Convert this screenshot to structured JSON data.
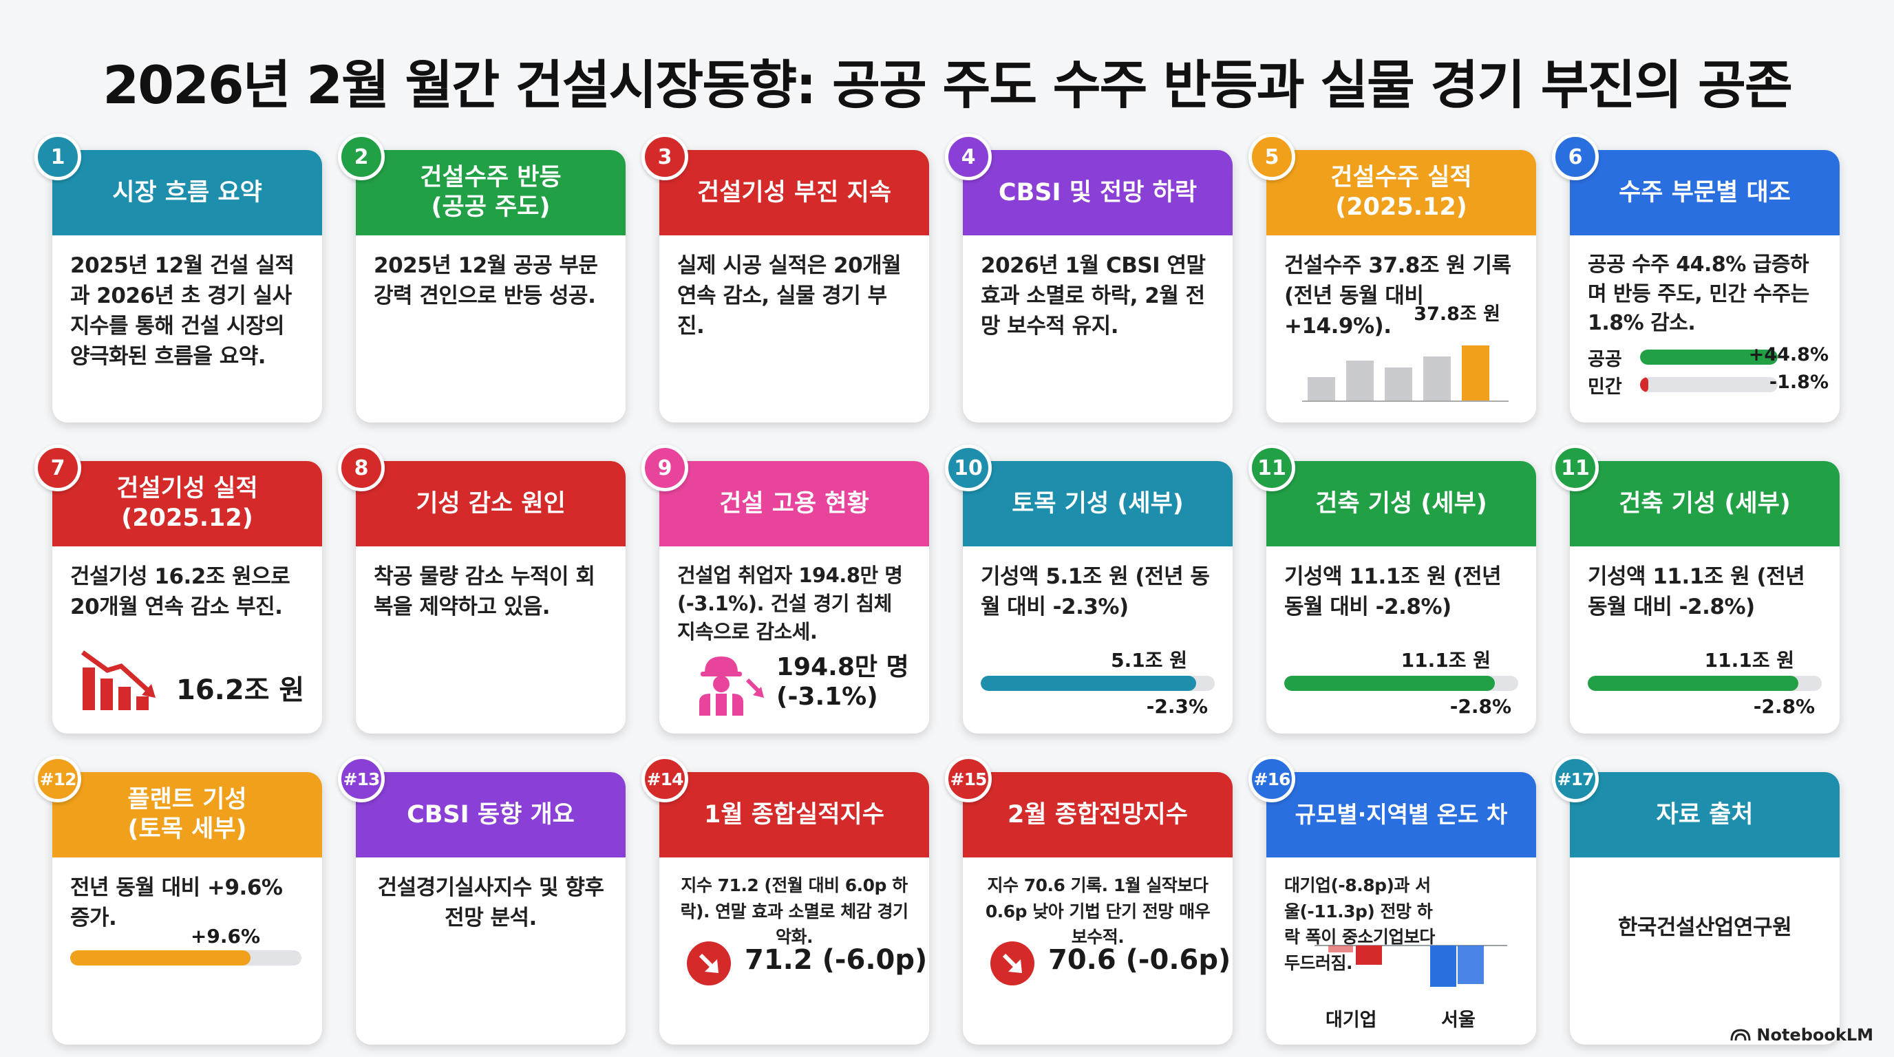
{
  "title": "2026년 2월 월간 건설시장동향: 공공 주도 수주 반등과 실물 경기 부진의 공존",
  "cards": [
    {
      "num": "1",
      "color": "#1d8fac",
      "title": "시장 흐름 요약",
      "body": "2025년 12월 건설 실적과 2026년 초 경기 실사 지수를 통해 건설 시장의 양극화된 흐름을 요약."
    },
    {
      "num": "2",
      "color": "#22a046",
      "title": "건설수주 반등\n(공공 주도)",
      "body": "2025년 12월 공공 부문 강력 견인으로 반등 성공."
    },
    {
      "num": "3",
      "color": "#d52a2a",
      "title": "건설기성 부진 지속",
      "body": "실제 시공 실적은 20개월 연속 감소, 실물 경기 부진."
    },
    {
      "num": "4",
      "color": "#8a3fd6",
      "title": "CBSI 및 전망 하락",
      "body": "2026년 1월 CBSI 연말 효과 소멸로 하락, 2월 전망 보수적 유지."
    },
    {
      "num": "5",
      "color": "#f0a01a",
      "title": "건설수주 실적\n(2025.12)",
      "body": "건설수주 37.8조 원 기록 (전년 동월 대비 +14.9%).",
      "chart_label": "37.8조 원"
    },
    {
      "num": "6",
      "color": "#2a6fe0",
      "title": "수주 부문별 대조",
      "body": "공공 수주 44.8% 급증하며 반등 주도, 민간 수주는 1.8% 감소.",
      "rows": [
        {
          "label": "공공",
          "value": "+44.8%",
          "pct": 44.8,
          "color": "#22a046"
        },
        {
          "label": "민간",
          "value": "-1.8%",
          "pct": -1.8,
          "color": "#d52a2a"
        }
      ]
    },
    {
      "num": "7",
      "color": "#d52a2a",
      "title": "건설기성 실적\n(2025.12)",
      "body": "건설기성 16.2조 원으로 20개월 연속 감소 부진.",
      "value": "16.2조 원",
      "icon": "declining-bar-chart-icon"
    },
    {
      "num": "8",
      "color": "#d52a2a",
      "title": "기성 감소 원인",
      "body": "착공 물량 감소 누적이 회복을 제약하고 있음."
    },
    {
      "num": "9",
      "color": "#e8449b",
      "title": "건설 고용 현황",
      "body": "건설업 취업자 194.8만 명 (-3.1%). 건설 경기 침체 지속으로 감소세.",
      "value": "194.8만 명\n(-3.1%)",
      "icon": "construction-worker-icon"
    },
    {
      "num": "10",
      "color": "#1d8fac",
      "title": "토목 기성 (세부)",
      "body": "기성액 5.1조 원 (전년 동월 대비 -2.3%)",
      "bar_label": "5.1조 원",
      "change": "-2.3%",
      "fill": 0.92
    },
    {
      "num": "11",
      "color": "#22a046",
      "title": "건축 기성 (세부)",
      "body": "기성액 11.1조 원 (전년 동월 대비 -2.8%)",
      "bar_label": "11.1조 원",
      "change": "-2.8%",
      "fill": 0.9
    },
    {
      "num": "11",
      "color": "#22a046",
      "title": "건축 기성 (세부)",
      "body": "기성액 11.1조 원 (전년 동월 대비 -2.8%)",
      "bar_label": "11.1조 원",
      "change": "-2.8%",
      "fill": 0.9
    },
    {
      "num": "#12",
      "color": "#f0a01a",
      "title": "플랜트 기성\n(토목 세부)",
      "body": "전년 동월 대비 +9.6% 증가.",
      "bar_label": "+9.6%",
      "fill": 0.78
    },
    {
      "num": "#13",
      "color": "#8a3fd6",
      "title": "CBSI 동향 개요",
      "body": "건설경기실사지수 및 향후 전망 분석."
    },
    {
      "num": "#14",
      "color": "#d52a2a",
      "title": "1월 종합실적지수",
      "body": "지수 71.2 (전월 대비 6.0p 하락). 연말 효과 소멸로 체감 경기 악화.",
      "value": "71.2 (-6.0p)"
    },
    {
      "num": "#15",
      "color": "#d52a2a",
      "title": "2월 종합전망지수",
      "body": "지수 70.6 기록. 1월 실작보다 0.6p 낮아 기법 단기 전망 매우 보수적.",
      "value": "70.6 (-0.6p)"
    },
    {
      "num": "#16",
      "color": "#2a6fe0",
      "title": "규모별·지역별 온도 차",
      "body": "대기업(-8.8p)과 서울(-11.3p) 전망 하락 폭이 중소기업보다 두드러짐.",
      "bars": [
        {
          "label": "대기업",
          "value": -8.8,
          "color": "#d52a2a"
        },
        {
          "label": "서울",
          "value": -11.3,
          "color": "#2a6fe0"
        }
      ]
    },
    {
      "num": "#17",
      "color": "#1d8fac",
      "title": "자료 출처",
      "body": "한국건설산업연구원"
    }
  ],
  "footer": {
    "brand": "NotebookLM"
  }
}
